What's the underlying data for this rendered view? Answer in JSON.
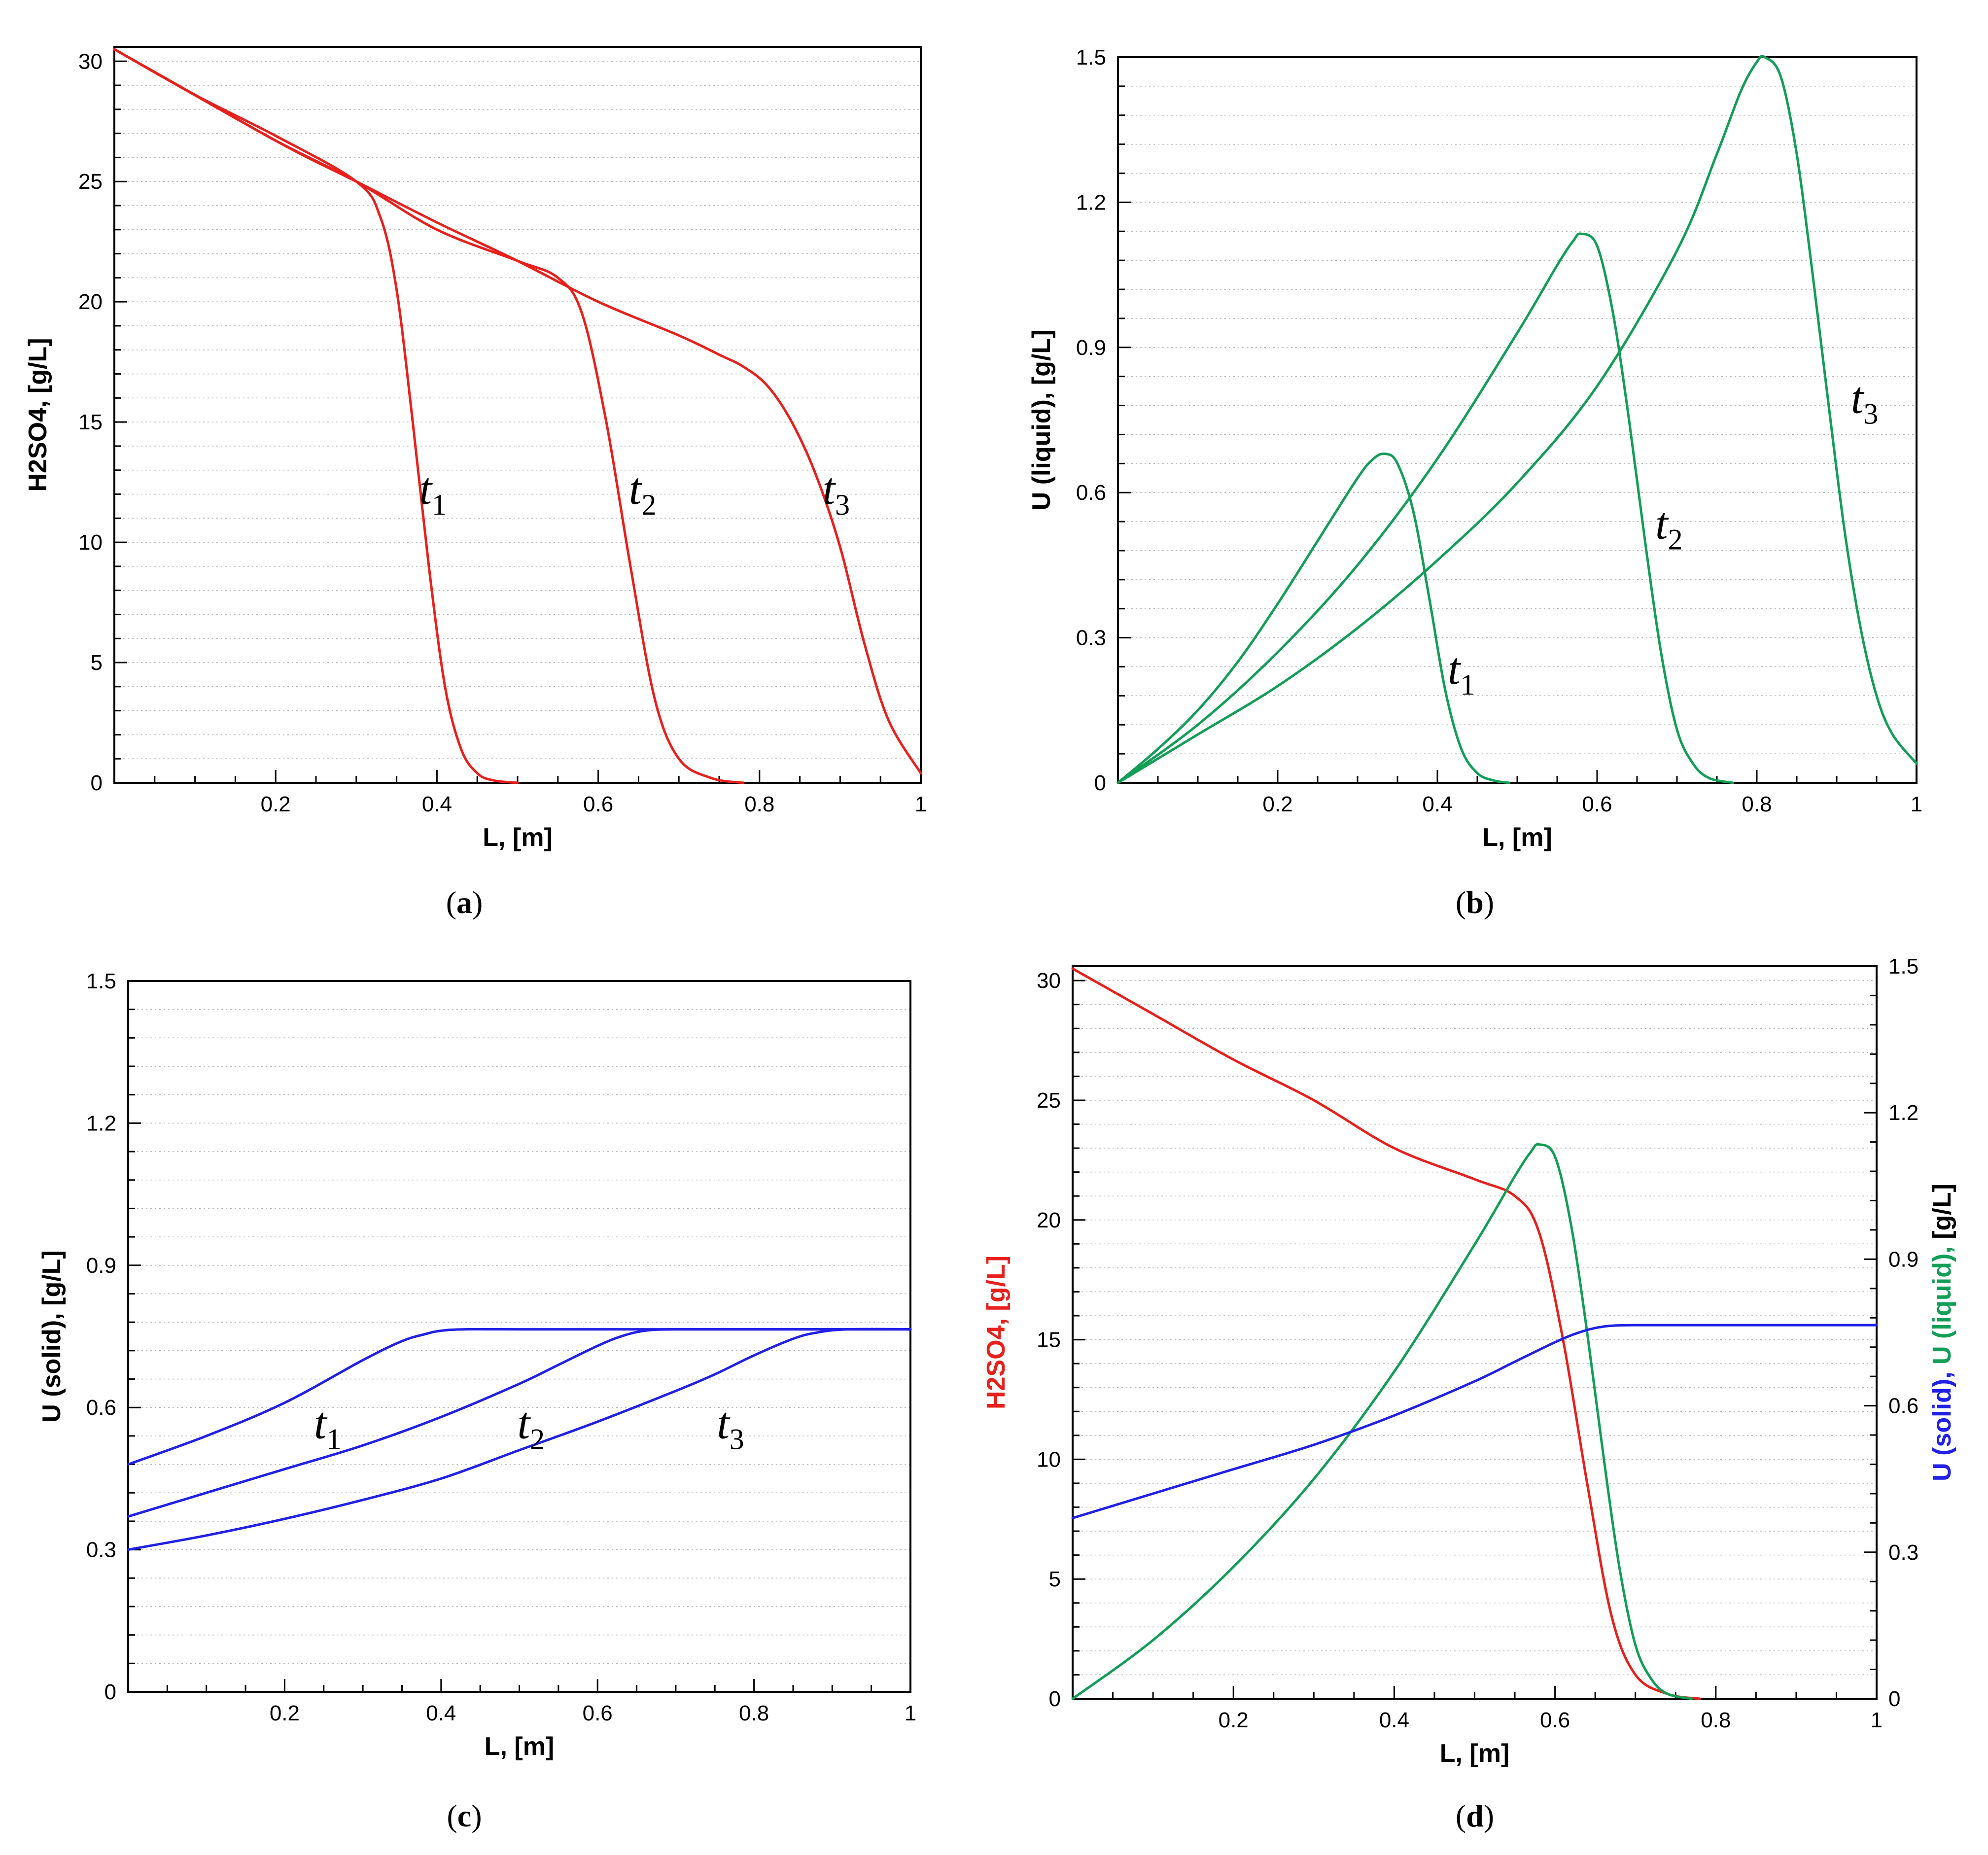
{
  "chart_data": [
    {
      "id": "a",
      "caption": "a",
      "type": "line",
      "xlabel": "L, [m]",
      "ylabel": "H2SO4, [g/L]",
      "xlim": [
        0,
        1
      ],
      "ylim": [
        0,
        30.6
      ],
      "xticks": [
        0.2,
        0.4,
        0.6,
        0.8,
        1
      ],
      "xtick_labels": [
        "0.2",
        "0.4",
        "0.6",
        "0.8",
        "1"
      ],
      "yticks": [
        0,
        5,
        10,
        15,
        20,
        25,
        30
      ],
      "ytick_labels": [
        "0",
        "5",
        "10",
        "15",
        "20",
        "25",
        "30"
      ],
      "color": "#e8201c",
      "series": [
        {
          "name": "t1",
          "x": [
            0,
            0.1,
            0.2,
            0.3,
            0.33,
            0.35,
            0.37,
            0.39,
            0.41,
            0.43,
            0.45,
            0.47,
            0.5
          ],
          "y": [
            30.5,
            28.6,
            26.9,
            25.0,
            23.5,
            20.5,
            15.0,
            9.0,
            4.0,
            1.4,
            0.4,
            0.1,
            0.0
          ]
        },
        {
          "name": "t2",
          "x": [
            0,
            0.1,
            0.2,
            0.3,
            0.4,
            0.5,
            0.55,
            0.58,
            0.61,
            0.64,
            0.67,
            0.7,
            0.74,
            0.78
          ],
          "y": [
            30.5,
            28.6,
            26.7,
            25.0,
            23.0,
            21.7,
            21.0,
            19.5,
            15.0,
            9.0,
            3.5,
            1.0,
            0.2,
            0.0
          ]
        },
        {
          "name": "t3",
          "x": [
            0,
            0.2,
            0.3,
            0.4,
            0.5,
            0.6,
            0.7,
            0.75,
            0.78,
            0.81,
            0.84,
            0.87,
            0.9,
            0.93,
            0.96,
            1.0
          ],
          "y": [
            30.5,
            26.7,
            25.0,
            23.3,
            21.7,
            20.0,
            18.6,
            17.8,
            17.3,
            16.5,
            15.0,
            12.8,
            9.8,
            5.8,
            2.6,
            0.4
          ]
        }
      ],
      "annotations": [
        {
          "base": "t",
          "sub": "1",
          "x": 0.395,
          "y": 11.6
        },
        {
          "base": "t",
          "sub": "2",
          "x": 0.655,
          "y": 11.6
        },
        {
          "base": "t",
          "sub": "3",
          "x": 0.895,
          "y": 11.6
        }
      ]
    },
    {
      "id": "b",
      "caption": "b",
      "type": "line",
      "xlabel": "L, [m]",
      "ylabel": "U (liquid), [g/L]",
      "xlim": [
        0,
        1
      ],
      "ylim": [
        0,
        1.5
      ],
      "xticks": [
        0.2,
        0.4,
        0.6,
        0.8,
        1
      ],
      "xtick_labels": [
        "0.2",
        "0.4",
        "0.6",
        "0.8",
        "1"
      ],
      "yticks": [
        0,
        0.3,
        0.6,
        0.9,
        1.2,
        1.5
      ],
      "ytick_labels": [
        "0",
        "0.3",
        "0.6",
        "0.9",
        "1.2",
        "1.5"
      ],
      "color": "#129e57",
      "series": [
        {
          "name": "t1",
          "x": [
            0,
            0.05,
            0.1,
            0.15,
            0.2,
            0.25,
            0.3,
            0.32,
            0.335,
            0.35,
            0.37,
            0.39,
            0.41,
            0.43,
            0.45,
            0.47,
            0.49
          ],
          "y": [
            0,
            0.07,
            0.15,
            0.25,
            0.37,
            0.5,
            0.63,
            0.67,
            0.68,
            0.66,
            0.56,
            0.38,
            0.19,
            0.07,
            0.02,
            0.005,
            0
          ]
        },
        {
          "name": "t2",
          "x": [
            0,
            0.1,
            0.2,
            0.3,
            0.4,
            0.5,
            0.55,
            0.57,
            0.58,
            0.6,
            0.62,
            0.64,
            0.66,
            0.68,
            0.7,
            0.72,
            0.74,
            0.77
          ],
          "y": [
            0,
            0.12,
            0.27,
            0.45,
            0.67,
            0.93,
            1.07,
            1.12,
            1.135,
            1.11,
            0.97,
            0.75,
            0.5,
            0.27,
            0.11,
            0.04,
            0.01,
            0
          ]
        },
        {
          "name": "t3",
          "x": [
            0,
            0.1,
            0.2,
            0.3,
            0.4,
            0.5,
            0.6,
            0.7,
            0.75,
            0.78,
            0.8,
            0.81,
            0.83,
            0.85,
            0.87,
            0.89,
            0.91,
            0.93,
            0.95,
            0.97,
            1.0
          ],
          "y": [
            0,
            0.1,
            0.2,
            0.32,
            0.46,
            0.62,
            0.82,
            1.1,
            1.3,
            1.43,
            1.49,
            1.5,
            1.46,
            1.3,
            1.05,
            0.78,
            0.52,
            0.32,
            0.18,
            0.1,
            0.04
          ]
        }
      ],
      "annotations": [
        {
          "base": "t",
          "sub": "1",
          "x": 0.43,
          "y": 0.205
        },
        {
          "base": "t",
          "sub": "2",
          "x": 0.69,
          "y": 0.505
        },
        {
          "base": "t",
          "sub": "3",
          "x": 0.935,
          "y": 0.765
        }
      ]
    },
    {
      "id": "c",
      "caption": "c",
      "type": "line",
      "xlabel": "L, [m]",
      "ylabel": "U (solid), [g/L]",
      "xlim": [
        0,
        1
      ],
      "ylim": [
        0,
        1.5
      ],
      "xticks": [
        0.2,
        0.4,
        0.6,
        0.8,
        1
      ],
      "xtick_labels": [
        "0.2",
        "0.4",
        "0.6",
        "0.8",
        "1"
      ],
      "yticks": [
        0,
        0.3,
        0.6,
        0.9,
        1.2,
        1.5
      ],
      "ytick_labels": [
        "0",
        "0.3",
        "0.6",
        "0.9",
        "1.2",
        "1.5"
      ],
      "color": "#2020e6",
      "series": [
        {
          "name": "t1",
          "x": [
            0,
            0.1,
            0.2,
            0.3,
            0.35,
            0.38,
            0.4,
            0.43,
            0.5,
            0.7,
            1.0
          ],
          "y": [
            0.48,
            0.54,
            0.61,
            0.7,
            0.74,
            0.755,
            0.762,
            0.765,
            0.765,
            0.765,
            0.765
          ]
        },
        {
          "name": "t2",
          "x": [
            0,
            0.1,
            0.2,
            0.3,
            0.4,
            0.5,
            0.55,
            0.6,
            0.63,
            0.66,
            0.7,
            0.8,
            1.0
          ],
          "y": [
            0.37,
            0.42,
            0.47,
            0.52,
            0.58,
            0.65,
            0.69,
            0.73,
            0.75,
            0.762,
            0.765,
            0.765,
            0.765
          ]
        },
        {
          "name": "t3",
          "x": [
            0,
            0.1,
            0.2,
            0.3,
            0.4,
            0.5,
            0.6,
            0.7,
            0.75,
            0.8,
            0.85,
            0.88,
            0.92,
            1.0
          ],
          "y": [
            0.3,
            0.33,
            0.365,
            0.405,
            0.45,
            0.51,
            0.57,
            0.635,
            0.67,
            0.71,
            0.745,
            0.758,
            0.765,
            0.765
          ]
        }
      ],
      "annotations": [
        {
          "base": "t",
          "sub": "1",
          "x": 0.255,
          "y": 0.535
        },
        {
          "base": "t",
          "sub": "2",
          "x": 0.515,
          "y": 0.535
        },
        {
          "base": "t",
          "sub": "3",
          "x": 0.77,
          "y": 0.535
        }
      ]
    },
    {
      "id": "d",
      "caption": "d",
      "type": "line",
      "xlabel": "L, [m]",
      "ylabel_left": {
        "text": "H2SO4, [g/L]",
        "color": "#e8201c"
      },
      "ylabel_right": [
        {
          "text": "U (solid), ",
          "color": "#2020e6"
        },
        {
          "text": "U (liquid), ",
          "color": "#129e57"
        },
        {
          "text": "[g/L]",
          "color": "#000000"
        }
      ],
      "xlim": [
        0,
        1
      ],
      "ylim_left": [
        0,
        30.6
      ],
      "ylim_right": [
        0,
        1.5
      ],
      "xticks": [
        0.2,
        0.4,
        0.6,
        0.8,
        1
      ],
      "xtick_labels": [
        "0.2",
        "0.4",
        "0.6",
        "0.8",
        "1"
      ],
      "yticks_left": [
        0,
        5,
        10,
        15,
        20,
        25,
        30
      ],
      "ytick_labels_left": [
        "0",
        "5",
        "10",
        "15",
        "20",
        "25",
        "30"
      ],
      "yticks_right": [
        0,
        0.3,
        0.6,
        0.9,
        1.2,
        1.5
      ],
      "ytick_labels_right": [
        "0",
        "0.3",
        "0.6",
        "0.9",
        "1.2",
        "1.5"
      ],
      "series": [
        {
          "name": "H2SO4",
          "axis": "left",
          "color": "#e8201c",
          "x": [
            0,
            0.1,
            0.2,
            0.3,
            0.4,
            0.5,
            0.55,
            0.58,
            0.61,
            0.64,
            0.67,
            0.7,
            0.74,
            0.78
          ],
          "y": [
            30.5,
            28.6,
            26.7,
            25.0,
            23.0,
            21.7,
            21.0,
            19.5,
            15.0,
            9.0,
            3.5,
            1.0,
            0.2,
            0.0
          ]
        },
        {
          "name": "U (liquid)",
          "axis": "right",
          "color": "#129e57",
          "x": [
            0,
            0.1,
            0.2,
            0.3,
            0.4,
            0.5,
            0.55,
            0.57,
            0.58,
            0.6,
            0.62,
            0.64,
            0.66,
            0.68,
            0.7,
            0.72,
            0.74,
            0.77
          ],
          "y": [
            0,
            0.12,
            0.27,
            0.45,
            0.67,
            0.93,
            1.07,
            1.12,
            1.135,
            1.11,
            0.97,
            0.75,
            0.5,
            0.27,
            0.11,
            0.04,
            0.01,
            0
          ]
        },
        {
          "name": "U (solid)",
          "axis": "right",
          "color": "#2020e6",
          "x": [
            0,
            0.1,
            0.2,
            0.3,
            0.4,
            0.5,
            0.55,
            0.6,
            0.63,
            0.66,
            0.7,
            0.8,
            1.0
          ],
          "y": [
            0.37,
            0.42,
            0.47,
            0.52,
            0.58,
            0.65,
            0.69,
            0.73,
            0.75,
            0.762,
            0.765,
            0.765,
            0.765
          ]
        }
      ]
    }
  ]
}
